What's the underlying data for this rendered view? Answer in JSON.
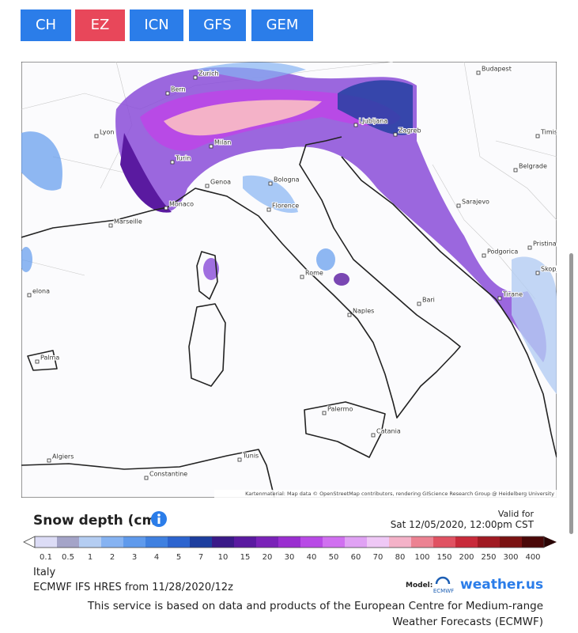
{
  "tabs": [
    "CH",
    "EZ",
    "ICN",
    "GFS",
    "GEM"
  ],
  "active_tab": 1,
  "map": {
    "cities": [
      "Zurich",
      "Budapest",
      "Bern",
      "Lyon",
      "Ljubljana",
      "Zagreb",
      "Timisoara",
      "Milan",
      "Turin",
      "Belgrade",
      "Genoa",
      "Bologna",
      "Monaco",
      "Florence",
      "Sarajevo",
      "Marseille",
      "Pristina",
      "Podgorica",
      "Skopje",
      "Rome",
      "Tirane",
      "Bari",
      "elona",
      "Naples",
      "Palma",
      "Palermo",
      "Catania",
      "Algiers",
      "Tunis",
      "Constantine"
    ],
    "attribution": "Kartenmaterial: Map data © OpenStreetMap contributors, rendering GIScience Research Group @ Heidelberg University"
  },
  "legend": {
    "title": "Snow depth (cm)",
    "valid_label": "Valid for",
    "valid_time": "Sat 12/05/2020, 12:00pm CST",
    "labels": [
      "0.1",
      "0.5",
      "1",
      "2",
      "3",
      "4",
      "5",
      "7",
      "10",
      "15",
      "20",
      "30",
      "40",
      "50",
      "60",
      "70",
      "80",
      "100",
      "150",
      "200",
      "250",
      "300",
      "400"
    ],
    "colors": [
      "#dcdcf6",
      "#a4a4c8",
      "#b4cdf2",
      "#86b3f2",
      "#5f9aec",
      "#3f80e0",
      "#2c64cf",
      "#1d3e9e",
      "#3a1a88",
      "#5a1aa0",
      "#7a22b8",
      "#9a2ed0",
      "#b84ae6",
      "#d070f0",
      "#e0a2f4",
      "#efc8f6",
      "#f4b2c8",
      "#ec8292",
      "#e05262",
      "#c82a3a",
      "#a01a22",
      "#7a1212",
      "#4a0808"
    ]
  },
  "region": "Italy",
  "model_run": "ECMWF IFS HRES from 11/28/2020/12z",
  "model_label": "Model:",
  "model_logo": "ECMWF",
  "brand": "weather.us",
  "footer": [
    "This service is based on data and products of the European Centre for Medium-range",
    "Weather Forecasts (ECMWF)"
  ]
}
